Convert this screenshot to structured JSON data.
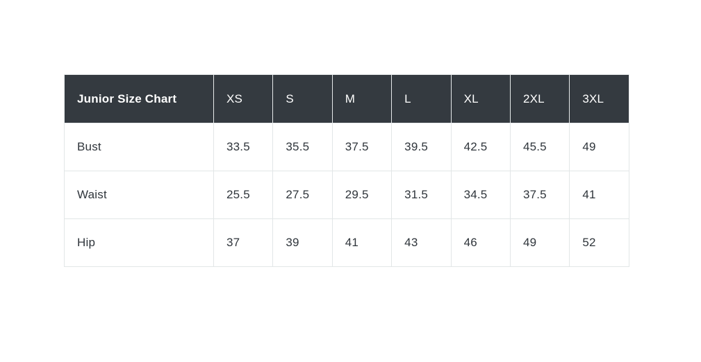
{
  "page": {
    "background": "#ffffff"
  },
  "size_chart": {
    "title": "Junior Size Chart",
    "columns": [
      "XS",
      "S",
      "M",
      "L",
      "XL",
      "2XL",
      "3XL"
    ],
    "rows": [
      {
        "label": "Bust",
        "values": [
          "33.5",
          "35.5",
          "37.5",
          "39.5",
          "42.5",
          "45.5",
          "49"
        ]
      },
      {
        "label": "Waist",
        "values": [
          "25.5",
          "27.5",
          "29.5",
          "31.5",
          "34.5",
          "37.5",
          "41"
        ]
      },
      {
        "label": "Hip",
        "values": [
          "37",
          "39",
          "41",
          "43",
          "46",
          "49",
          "52"
        ]
      }
    ],
    "colors": {
      "header_background": "#343a40",
      "header_text": "#ffffff",
      "body_text": "#2f353b",
      "border": "#e2e6e7",
      "page_background": "#ffffff"
    }
  },
  "chart_data": {
    "type": "table",
    "title": "Junior Size Chart",
    "columns": [
      "XS",
      "S",
      "M",
      "L",
      "XL",
      "2XL",
      "3XL"
    ],
    "rows": [
      {
        "label": "Bust",
        "values": [
          33.5,
          35.5,
          37.5,
          39.5,
          42.5,
          45.5,
          49
        ]
      },
      {
        "label": "Waist",
        "values": [
          25.5,
          27.5,
          29.5,
          31.5,
          34.5,
          37.5,
          41
        ]
      },
      {
        "label": "Hip",
        "values": [
          37,
          39,
          41,
          43,
          46,
          49,
          52
        ]
      }
    ],
    "layout": {
      "header_style": "dark",
      "grid": true
    }
  }
}
